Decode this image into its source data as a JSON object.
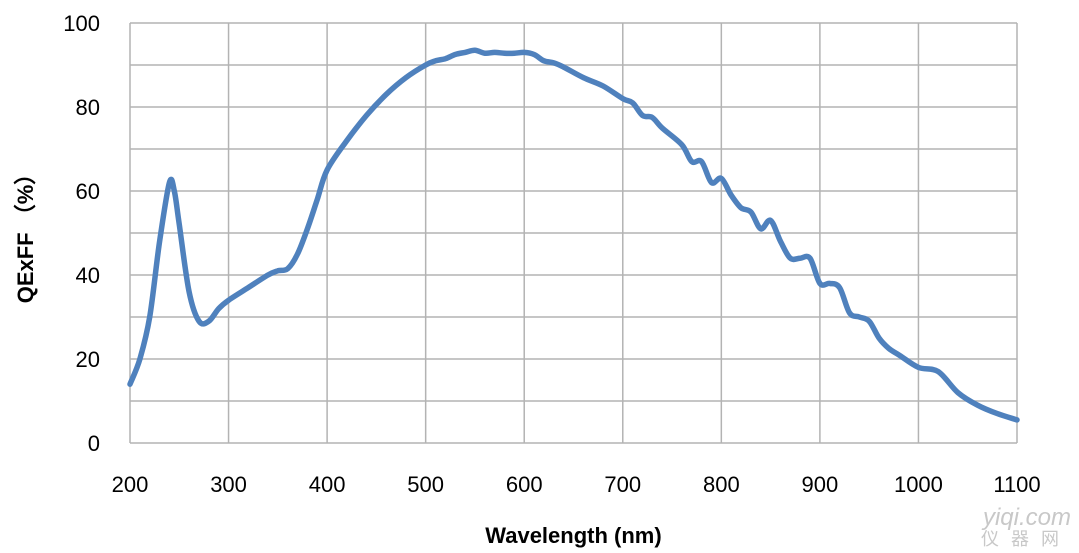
{
  "chart_data": {
    "type": "line",
    "title": "",
    "xlabel": "Wavelength (nm)",
    "ylabel": "QExFF （%）",
    "xlim": [
      200,
      1100
    ],
    "ylim": [
      0,
      100
    ],
    "xticks": [
      200,
      300,
      400,
      500,
      600,
      700,
      800,
      900,
      1000,
      1100
    ],
    "yticks": [
      0,
      20,
      40,
      60,
      80,
      100
    ],
    "grid": true,
    "legend": "none",
    "series": [
      {
        "color": "#4f81bd",
        "x": [
          200,
          210,
          220,
          230,
          240,
          245,
          250,
          260,
          270,
          280,
          290,
          300,
          320,
          340,
          350,
          360,
          370,
          380,
          390,
          400,
          420,
          440,
          460,
          480,
          500,
          510,
          520,
          530,
          540,
          550,
          560,
          570,
          580,
          590,
          600,
          610,
          620,
          630,
          640,
          660,
          680,
          700,
          710,
          720,
          730,
          740,
          760,
          770,
          780,
          790,
          800,
          810,
          820,
          830,
          840,
          850,
          860,
          870,
          880,
          890,
          900,
          910,
          920,
          930,
          940,
          950,
          960,
          970,
          980,
          1000,
          1020,
          1040,
          1060,
          1080,
          1100
        ],
        "y": [
          14,
          20,
          30,
          48,
          62,
          60,
          52,
          36,
          29,
          29,
          32,
          34,
          37,
          40,
          41,
          41.5,
          45,
          51,
          58,
          65,
          72,
          78,
          83,
          87,
          90,
          91,
          91.5,
          92.5,
          93,
          93.5,
          92.8,
          93,
          92.8,
          92.8,
          93,
          92.5,
          91,
          90.5,
          89.5,
          87,
          85,
          82,
          81,
          78,
          77.5,
          75,
          71,
          67,
          67,
          62,
          63,
          59,
          56,
          55,
          51,
          53,
          48,
          44,
          44,
          44,
          38,
          38,
          37,
          31,
          30,
          29,
          25,
          22.5,
          21,
          18,
          17,
          12,
          9,
          7,
          5.5
        ]
      }
    ]
  },
  "watermark": {
    "top": "yiqi.com",
    "bottom": "仪器网"
  }
}
